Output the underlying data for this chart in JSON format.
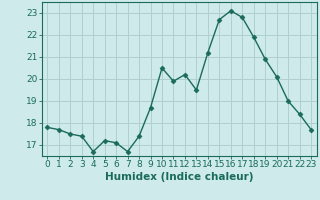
{
  "x": [
    0,
    1,
    2,
    3,
    4,
    5,
    6,
    7,
    8,
    9,
    10,
    11,
    12,
    13,
    14,
    15,
    16,
    17,
    18,
    19,
    20,
    21,
    22,
    23
  ],
  "y": [
    17.8,
    17.7,
    17.5,
    17.4,
    16.7,
    17.2,
    17.1,
    16.7,
    17.4,
    18.7,
    20.5,
    19.9,
    20.2,
    19.5,
    21.2,
    22.7,
    23.1,
    22.8,
    21.9,
    20.9,
    20.1,
    19.0,
    18.4,
    17.7
  ],
  "line_color": "#1a6b5a",
  "marker": "D",
  "marker_size": 2.5,
  "bg_color": "#ceeaea",
  "grid_color": "#b0d0d0",
  "xlabel": "Humidex (Indice chaleur)",
  "xlim": [
    -0.5,
    23.5
  ],
  "ylim": [
    16.5,
    23.5
  ],
  "yticks": [
    17,
    18,
    19,
    20,
    21,
    22,
    23
  ],
  "xticks": [
    0,
    1,
    2,
    3,
    4,
    5,
    6,
    7,
    8,
    9,
    10,
    11,
    12,
    13,
    14,
    15,
    16,
    17,
    18,
    19,
    20,
    21,
    22,
    23
  ],
  "tick_label_fontsize": 6.5,
  "xlabel_fontsize": 7.5,
  "axis_color": "#1a6b5a",
  "line_width": 1.0
}
